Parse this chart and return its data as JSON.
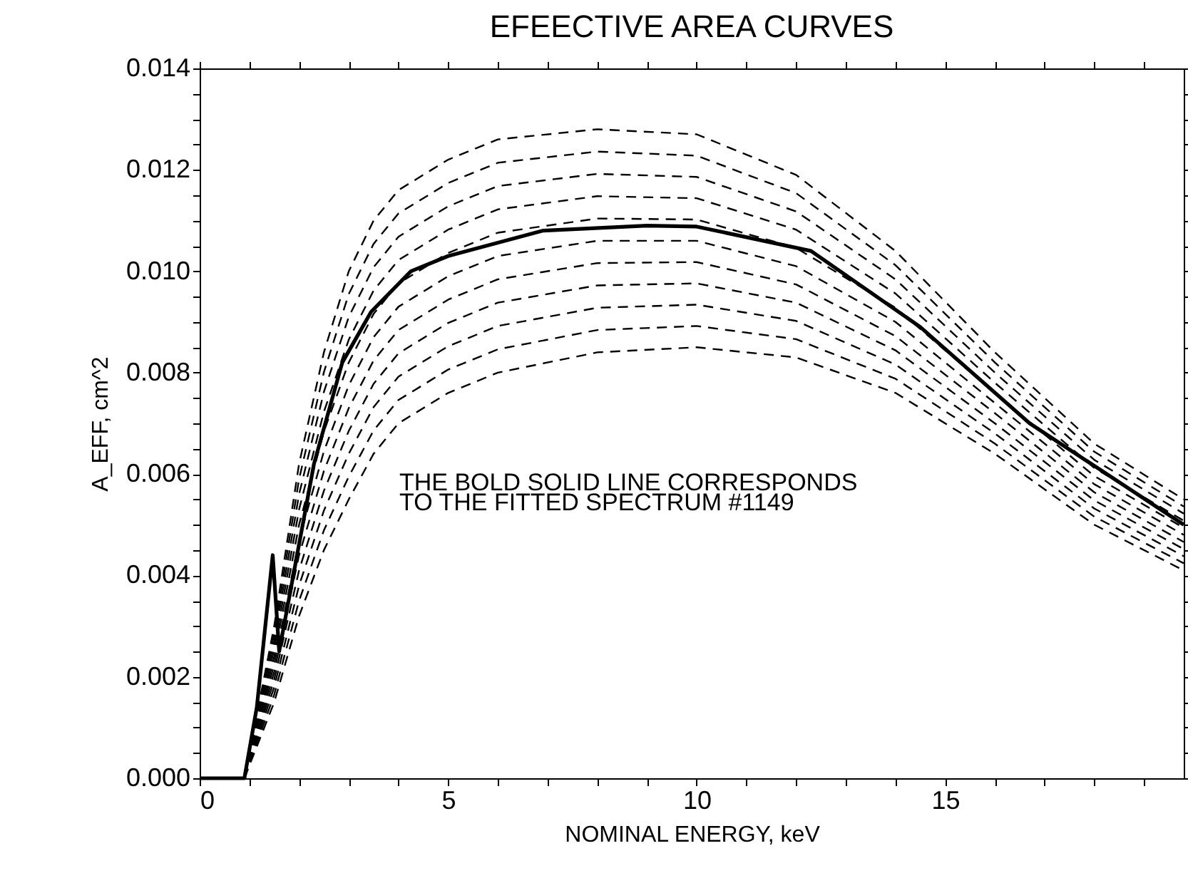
{
  "chart_data": {
    "type": "line",
    "title": "EFEECTIVE AREA CURVES",
    "xlabel": "NOMINAL ENERGY, keV",
    "ylabel": "A_EFF, cm^2",
    "annotations": [
      "THE BOLD SOLID LINE CORRESPONDS",
      "TO THE FITTED SPECTRUM #1149"
    ],
    "xlim": [
      0,
      19.8
    ],
    "ylim": [
      0,
      0.014
    ],
    "xticks": [
      0,
      {
        "value": 1,
        "label": null
      },
      {
        "value": 2,
        "label": null
      },
      {
        "value": 3,
        "label": null
      },
      {
        "value": 4,
        "label": null
      },
      5,
      {
        "value": 6,
        "label": null
      },
      {
        "value": 7,
        "label": null
      },
      {
        "value": 8,
        "label": null
      },
      {
        "value": 9,
        "label": null
      },
      10,
      {
        "value": 11,
        "label": null
      },
      {
        "value": 12,
        "label": null
      },
      {
        "value": 13,
        "label": null
      },
      {
        "value": 14,
        "label": null
      },
      15,
      {
        "value": 16,
        "label": null
      },
      {
        "value": 17,
        "label": null
      },
      {
        "value": 18,
        "label": null
      },
      {
        "value": 19,
        "label": null
      }
    ],
    "yticks": [
      {
        "value": 0,
        "label": "0.000"
      },
      {
        "value": 0.0005,
        "label": null
      },
      {
        "value": 0.001,
        "label": null
      },
      {
        "value": 0.0015,
        "label": null
      },
      {
        "value": 0.002,
        "label": "0.002"
      },
      {
        "value": 0.0025,
        "label": null
      },
      {
        "value": 0.003,
        "label": null
      },
      {
        "value": 0.0035,
        "label": null
      },
      {
        "value": 0.004,
        "label": "0.004"
      },
      {
        "value": 0.0045,
        "label": null
      },
      {
        "value": 0.005,
        "label": null
      },
      {
        "value": 0.0055,
        "label": null
      },
      {
        "value": 0.006,
        "label": "0.006"
      },
      {
        "value": 0.0065,
        "label": null
      },
      {
        "value": 0.007,
        "label": null
      },
      {
        "value": 0.0075,
        "label": null
      },
      {
        "value": 0.008,
        "label": "0.008"
      },
      {
        "value": 0.0085,
        "label": null
      },
      {
        "value": 0.009,
        "label": null
      },
      {
        "value": 0.0095,
        "label": null
      },
      {
        "value": 0.01,
        "label": "0.010"
      },
      {
        "value": 0.0105,
        "label": null
      },
      {
        "value": 0.011,
        "label": null
      },
      {
        "value": 0.0115,
        "label": null
      },
      {
        "value": 0.012,
        "label": "0.012"
      },
      {
        "value": 0.0125,
        "label": null
      },
      {
        "value": 0.013,
        "label": null
      },
      {
        "value": 0.0135,
        "label": null
      },
      {
        "value": 0.014,
        "label": "0.014"
      }
    ],
    "grid": false,
    "marker": "none",
    "series": [
      {
        "color": "#000000",
        "line_style": "dashed",
        "x": [
          0.9,
          1.5,
          2,
          2.5,
          3,
          3.5,
          4,
          5,
          6,
          8,
          10,
          12,
          14,
          16,
          18,
          19.8
        ],
        "values": [
          0,
          0.0015,
          0.0032,
          0.0045,
          0.0055,
          0.0064,
          0.007,
          0.0076,
          0.008,
          0.0084,
          0.0085,
          0.0083,
          0.0076,
          0.0064,
          0.005,
          0.0041
        ]
      },
      {
        "color": "#000000",
        "line_style": "dashed",
        "x": [
          0.9,
          1.5,
          2,
          2.5,
          3,
          3.5,
          4,
          5,
          6,
          8,
          10,
          12,
          14,
          16,
          18,
          19.8
        ],
        "values": [
          0,
          0.00165,
          0.0035,
          0.00489,
          0.00595,
          0.00686,
          0.00746,
          0.00806,
          0.00846,
          0.00884,
          0.00892,
          0.00866,
          0.00788,
          0.0066,
          0.00516,
          0.00424
        ]
      },
      {
        "color": "#000000",
        "line_style": "dashed",
        "x": [
          0.9,
          1.5,
          2,
          2.5,
          3,
          3.5,
          4,
          5,
          6,
          8,
          10,
          12,
          14,
          16,
          18,
          19.8
        ],
        "values": [
          0,
          0.0018,
          0.0038,
          0.00528,
          0.0064,
          0.00732,
          0.00792,
          0.00852,
          0.00892,
          0.00928,
          0.00934,
          0.00902,
          0.00816,
          0.0068,
          0.00532,
          0.00438
        ]
      },
      {
        "color": "#000000",
        "line_style": "dashed",
        "x": [
          0.9,
          1.5,
          2,
          2.5,
          3,
          3.5,
          4,
          5,
          6,
          8,
          10,
          12,
          14,
          16,
          18,
          19.8
        ],
        "values": [
          0,
          0.00195,
          0.0041,
          0.00567,
          0.00685,
          0.00778,
          0.00838,
          0.00898,
          0.00938,
          0.00972,
          0.00976,
          0.00938,
          0.00844,
          0.007,
          0.00548,
          0.00452
        ]
      },
      {
        "color": "#000000",
        "line_style": "dashed",
        "x": [
          0.9,
          1.5,
          2,
          2.5,
          3,
          3.5,
          4,
          5,
          6,
          8,
          10,
          12,
          14,
          16,
          18,
          19.8
        ],
        "values": [
          0,
          0.0021,
          0.0044,
          0.00606,
          0.0073,
          0.00824,
          0.00884,
          0.00944,
          0.00984,
          0.01016,
          0.01018,
          0.00974,
          0.00872,
          0.0072,
          0.00564,
          0.00466
        ]
      },
      {
        "color": "#000000",
        "line_style": "dashed",
        "x": [
          0.9,
          1.5,
          2,
          2.5,
          3,
          3.5,
          4,
          5,
          6,
          8,
          10,
          12,
          14,
          16,
          18,
          19.8
        ],
        "values": [
          0,
          0.00225,
          0.0047,
          0.00645,
          0.00775,
          0.0087,
          0.0093,
          0.0099,
          0.0103,
          0.0106,
          0.0106,
          0.0101,
          0.009,
          0.0074,
          0.0058,
          0.0048
        ]
      },
      {
        "color": "#000000",
        "line_style": "dashed",
        "x": [
          0.9,
          1.5,
          2,
          2.5,
          3,
          3.5,
          4,
          5,
          6,
          8,
          10,
          12,
          14,
          16,
          18,
          19.8
        ],
        "values": [
          0,
          0.0024,
          0.005,
          0.00684,
          0.0082,
          0.00916,
          0.00976,
          0.01036,
          0.01076,
          0.01104,
          0.01102,
          0.01046,
          0.00928,
          0.0076,
          0.00596,
          0.00494
        ]
      },
      {
        "color": "#000000",
        "line_style": "dashed",
        "x": [
          0.9,
          1.5,
          2,
          2.5,
          3,
          3.5,
          4,
          5,
          6,
          8,
          10,
          12,
          14,
          16,
          18,
          19.8
        ],
        "values": [
          0,
          0.00255,
          0.0053,
          0.00723,
          0.00865,
          0.00962,
          0.01022,
          0.01082,
          0.01122,
          0.01148,
          0.01144,
          0.01082,
          0.00956,
          0.0078,
          0.00612,
          0.00508
        ]
      },
      {
        "color": "#000000",
        "line_style": "dashed",
        "x": [
          0.9,
          1.5,
          2,
          2.5,
          3,
          3.5,
          4,
          5,
          6,
          8,
          10,
          12,
          14,
          16,
          18,
          19.8
        ],
        "values": [
          0,
          0.0027,
          0.0056,
          0.00762,
          0.0091,
          0.01008,
          0.01068,
          0.01128,
          0.01168,
          0.01192,
          0.01186,
          0.01118,
          0.00984,
          0.008,
          0.00628,
          0.00522
        ]
      },
      {
        "color": "#000000",
        "line_style": "dashed",
        "x": [
          0.9,
          1.5,
          2,
          2.5,
          3,
          3.5,
          4,
          5,
          6,
          8,
          10,
          12,
          14,
          16,
          18,
          19.8
        ],
        "values": [
          0,
          0.00285,
          0.0059,
          0.00801,
          0.00955,
          0.01054,
          0.01114,
          0.01174,
          0.01214,
          0.01236,
          0.01228,
          0.01154,
          0.01012,
          0.0082,
          0.00644,
          0.00536
        ]
      },
      {
        "color": "#000000",
        "line_style": "dashed",
        "x": [
          0.9,
          1.5,
          2,
          2.5,
          3,
          3.5,
          4,
          5,
          6,
          8,
          10,
          12,
          14,
          16,
          18,
          19.8
        ],
        "values": [
          0,
          0.003,
          0.0062,
          0.0084,
          0.01,
          0.011,
          0.0116,
          0.0122,
          0.0126,
          0.0128,
          0.0127,
          0.0119,
          0.0104,
          0.0084,
          0.0066,
          0.0055
        ]
      },
      {
        "color": "#000000",
        "line_style": "solid",
        "x": [
          0,
          0.9,
          1.15,
          1.47,
          1.6,
          2.3,
          2.87,
          3.45,
          4.25,
          5,
          6.9,
          9,
          10,
          12.3,
          14.5,
          16.7,
          19.8
        ],
        "values": [
          0,
          0,
          0.0014,
          0.0044,
          0.0025,
          0.0062,
          0.0082,
          0.0092,
          0.01,
          0.0103,
          0.0108,
          0.0109,
          0.01088,
          0.0104,
          0.0089,
          0.007,
          0.005
        ]
      }
    ]
  }
}
